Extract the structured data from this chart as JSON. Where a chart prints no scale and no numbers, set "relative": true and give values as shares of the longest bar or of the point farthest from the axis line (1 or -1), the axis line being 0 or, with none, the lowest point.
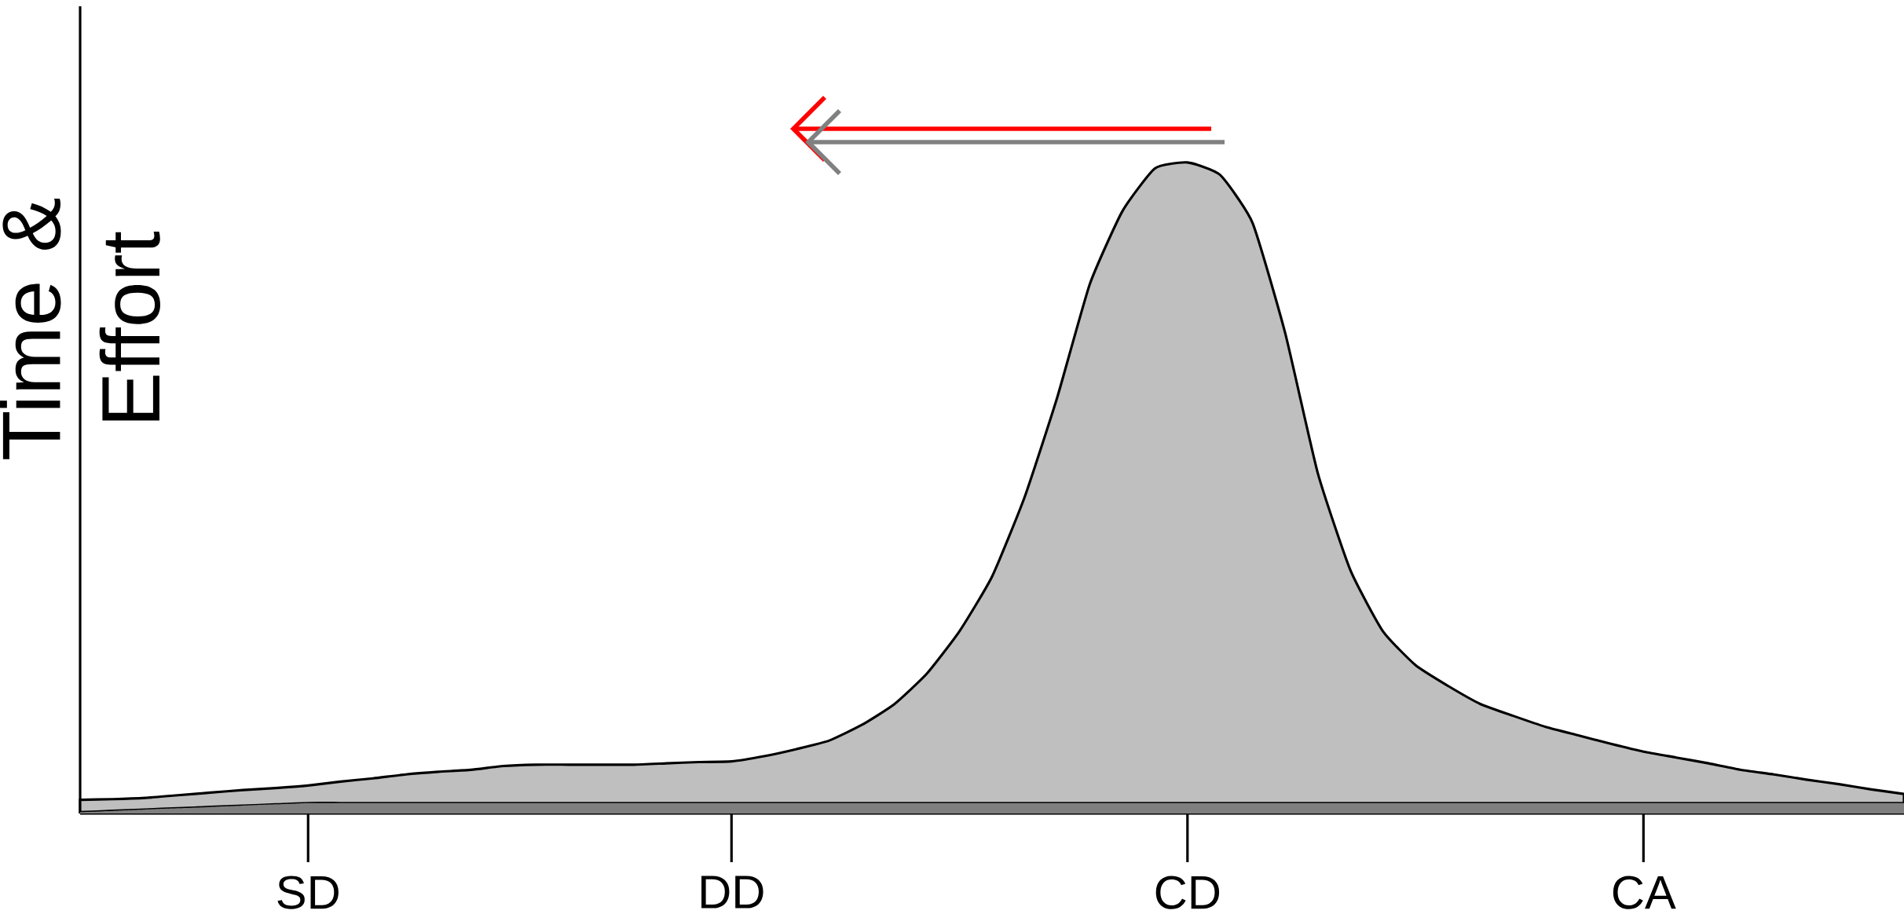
{
  "chart_data": {
    "type": "area",
    "relative": true,
    "stacked": true,
    "ylabel": "Time & Effort",
    "categories": [
      null,
      null,
      null,
      null,
      null,
      null,
      null,
      "SD",
      null,
      null,
      null,
      null,
      null,
      null,
      null,
      null,
      null,
      null,
      null,
      null,
      "DD",
      null,
      null,
      null,
      null,
      null,
      null,
      null,
      null,
      null,
      null,
      null,
      null,
      null,
      "CD",
      null,
      null,
      null,
      null,
      null,
      null,
      null,
      null,
      null,
      null,
      null,
      null,
      null,
      "CA",
      null,
      null,
      null,
      null,
      null,
      null,
      null,
      null
    ],
    "series": [
      {
        "color": "#7f7f7f",
        "values": [
          0.002,
          0.004,
          0.006,
          0.008,
          0.01,
          0.012,
          0.014,
          0.016,
          0.016,
          0.016,
          0.016,
          0.016,
          0.016,
          0.016,
          0.016,
          0.016,
          0.016,
          0.016,
          0.016,
          0.016,
          0.016,
          0.016,
          0.016,
          0.016,
          0.016,
          0.016,
          0.016,
          0.016,
          0.016,
          0.016,
          0.016,
          0.016,
          0.016,
          0.016,
          0.016,
          0.016,
          0.016,
          0.016,
          0.016,
          0.016,
          0.016,
          0.016,
          0.016,
          0.016,
          0.016,
          0.016,
          0.016,
          0.016,
          0.016,
          0.016,
          0.016,
          0.016,
          0.016,
          0.016,
          0.016,
          0.016,
          0.016
        ]
      },
      {
        "color": "#bfbfbf",
        "values": [
          0.019,
          0.018,
          0.018,
          0.02,
          0.022,
          0.024,
          0.025,
          0.027,
          0.033,
          0.038,
          0.044,
          0.048,
          0.051,
          0.057,
          0.059,
          0.059,
          0.059,
          0.059,
          0.061,
          0.063,
          0.064,
          0.072,
          0.083,
          0.096,
          0.12,
          0.152,
          0.199,
          0.264,
          0.348,
          0.47,
          0.623,
          0.797,
          0.909,
          0.975,
          0.984,
          0.965,
          0.891,
          0.722,
          0.507,
          0.358,
          0.264,
          0.212,
          0.18,
          0.152,
          0.134,
          0.117,
          0.104,
          0.091,
          0.079,
          0.07,
          0.061,
          0.051,
          0.044,
          0.036,
          0.029,
          0.021,
          0.014
        ]
      }
    ]
  }
}
